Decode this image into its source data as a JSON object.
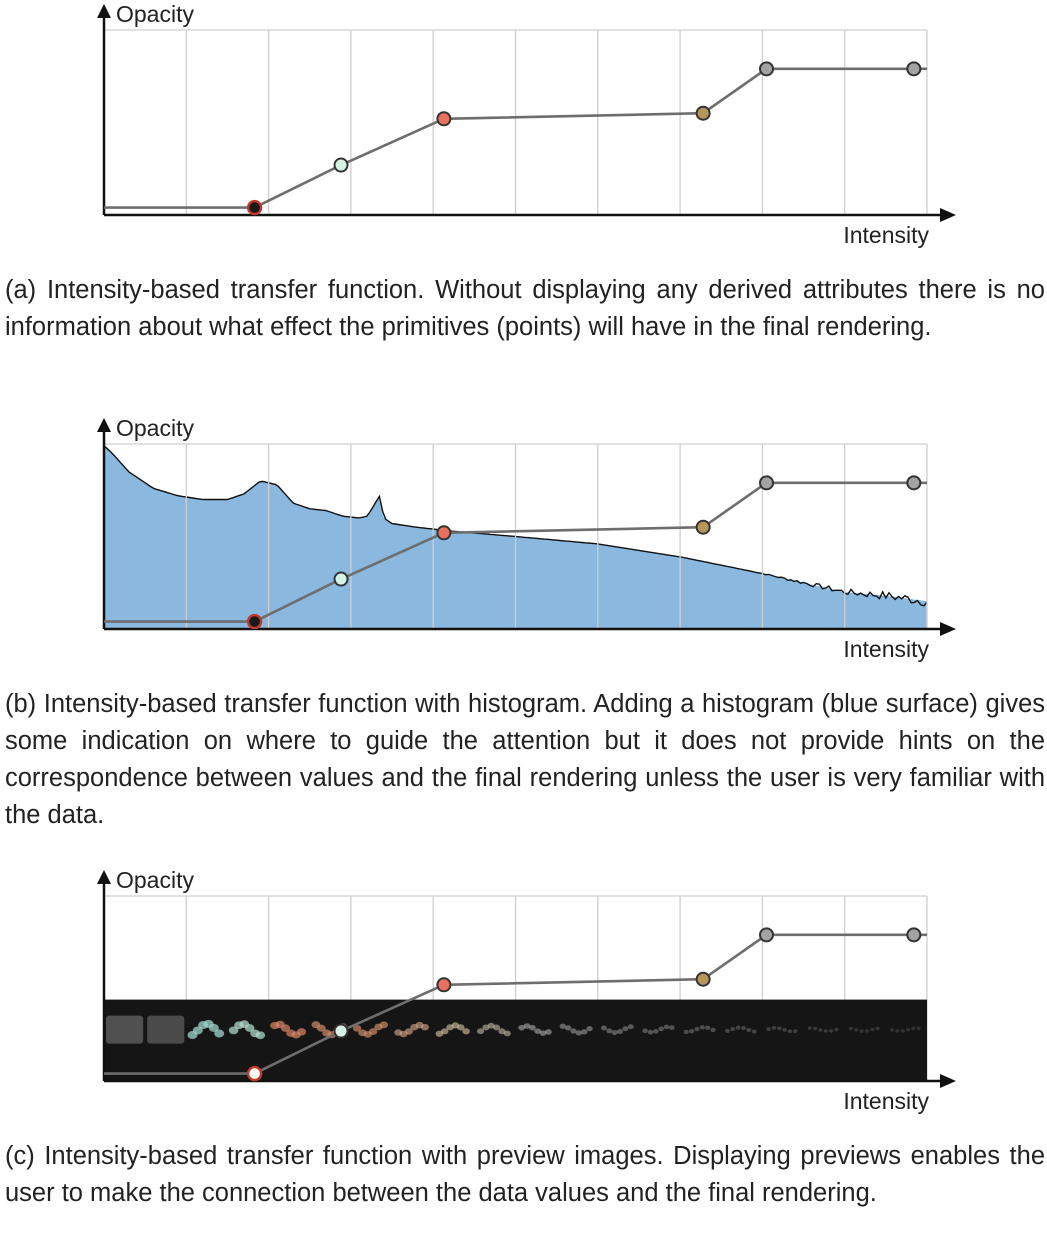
{
  "figure": {
    "panels": [
      {
        "id": "a",
        "y_label": "Opacity",
        "x_label": "Intensity",
        "caption": "(a) Intensity-based transfer function.  Without displaying any derived attributes there is no information about what effect the primitives (points) will have in the final rendering."
      },
      {
        "id": "b",
        "y_label": "Opacity",
        "x_label": "Intensity",
        "caption": "(b) Intensity-based transfer function with histogram. Adding a histogram (blue surface) gives some indication on where to guide the attention but it does not provide hints on the correspondence between values and the final rendering unless the user is very familiar with the data."
      },
      {
        "id": "c",
        "y_label": "Opacity",
        "x_label": "Intensity",
        "caption": "(c) Intensity-based transfer function with preview images. Displaying previews enables the user to make the connection between the data values and the final rendering."
      }
    ]
  },
  "chart_data": [
    {
      "type": "line",
      "xlabel": "Intensity",
      "ylabel": "Opacity",
      "xlim": [
        0,
        1
      ],
      "ylim": [
        0,
        1
      ],
      "grid": true,
      "control_points": [
        {
          "x": 0.0,
          "y": 0.04,
          "color": "none"
        },
        {
          "x": 0.183,
          "y": 0.04,
          "color": "#1a1a1a"
        },
        {
          "x": 0.288,
          "y": 0.27,
          "color": "#d6f2e4"
        },
        {
          "x": 0.413,
          "y": 0.52,
          "color": "#e8725e"
        },
        {
          "x": 0.728,
          "y": 0.55,
          "color": "#b8955a"
        },
        {
          "x": 0.805,
          "y": 0.79,
          "color": "#a3a3a3"
        },
        {
          "x": 0.984,
          "y": 0.79,
          "color": "#a3a3a3"
        },
        {
          "x": 1.0,
          "y": 0.79,
          "color": "none"
        }
      ]
    },
    {
      "type": "area",
      "xlabel": "Intensity",
      "ylabel": "Opacity",
      "xlim": [
        0,
        1
      ],
      "ylim": [
        0,
        1
      ],
      "grid": true,
      "histogram_color": "#8ab8de",
      "histogram": {
        "x": [
          0.0,
          0.01,
          0.03,
          0.06,
          0.09,
          0.12,
          0.15,
          0.17,
          0.19,
          0.21,
          0.23,
          0.25,
          0.27,
          0.29,
          0.31,
          0.32,
          0.335,
          0.34,
          0.35,
          0.38,
          0.42,
          0.5,
          0.6,
          0.7,
          0.8,
          0.85,
          0.9,
          0.95,
          1.0
        ],
        "y": [
          0.99,
          0.95,
          0.85,
          0.76,
          0.72,
          0.7,
          0.7,
          0.73,
          0.8,
          0.78,
          0.68,
          0.65,
          0.64,
          0.61,
          0.6,
          0.61,
          0.72,
          0.6,
          0.57,
          0.55,
          0.53,
          0.5,
          0.46,
          0.39,
          0.3,
          0.25,
          0.2,
          0.18,
          0.15
        ]
      },
      "control_points": [
        {
          "x": 0.0,
          "y": 0.04,
          "color": "none"
        },
        {
          "x": 0.183,
          "y": 0.04,
          "color": "#1a1a1a"
        },
        {
          "x": 0.288,
          "y": 0.27,
          "color": "#d6f2e4"
        },
        {
          "x": 0.413,
          "y": 0.52,
          "color": "#e8725e"
        },
        {
          "x": 0.728,
          "y": 0.55,
          "color": "#b8955a"
        },
        {
          "x": 0.805,
          "y": 0.79,
          "color": "#a3a3a3"
        },
        {
          "x": 0.984,
          "y": 0.79,
          "color": "#a3a3a3"
        },
        {
          "x": 1.0,
          "y": 0.79,
          "color": "none"
        }
      ]
    },
    {
      "type": "line",
      "xlabel": "Intensity",
      "ylabel": "Opacity",
      "xlim": [
        0,
        1
      ],
      "ylim": [
        0,
        1
      ],
      "grid": true,
      "preview_strip_color": "#151515",
      "preview_tint_colors": [
        "#9a9a9a",
        "#8f8f8f",
        "#9fd8cc",
        "#b5e0cf",
        "#e08a6a",
        "#e0936c",
        "#e09a70",
        "#e2b090",
        "#e6d8b0",
        "#d8d0b8",
        "#c8c8c8",
        "#bdbdbd",
        "#b5b5b5",
        "#adadad",
        "#a6a6a6",
        "#a0a0a0",
        "#9b9b9b",
        "#969696",
        "#919191",
        "#8c8c8c"
      ],
      "control_points": [
        {
          "x": 0.0,
          "y": 0.04,
          "color": "none"
        },
        {
          "x": 0.183,
          "y": 0.04,
          "color": "#ffffff"
        },
        {
          "x": 0.288,
          "y": 0.27,
          "color": "#d6f2e4"
        },
        {
          "x": 0.413,
          "y": 0.52,
          "color": "#e8725e"
        },
        {
          "x": 0.728,
          "y": 0.55,
          "color": "#b8955a"
        },
        {
          "x": 0.805,
          "y": 0.79,
          "color": "#a3a3a3"
        },
        {
          "x": 0.984,
          "y": 0.79,
          "color": "#a3a3a3"
        },
        {
          "x": 1.0,
          "y": 0.79,
          "color": "none"
        }
      ]
    }
  ]
}
